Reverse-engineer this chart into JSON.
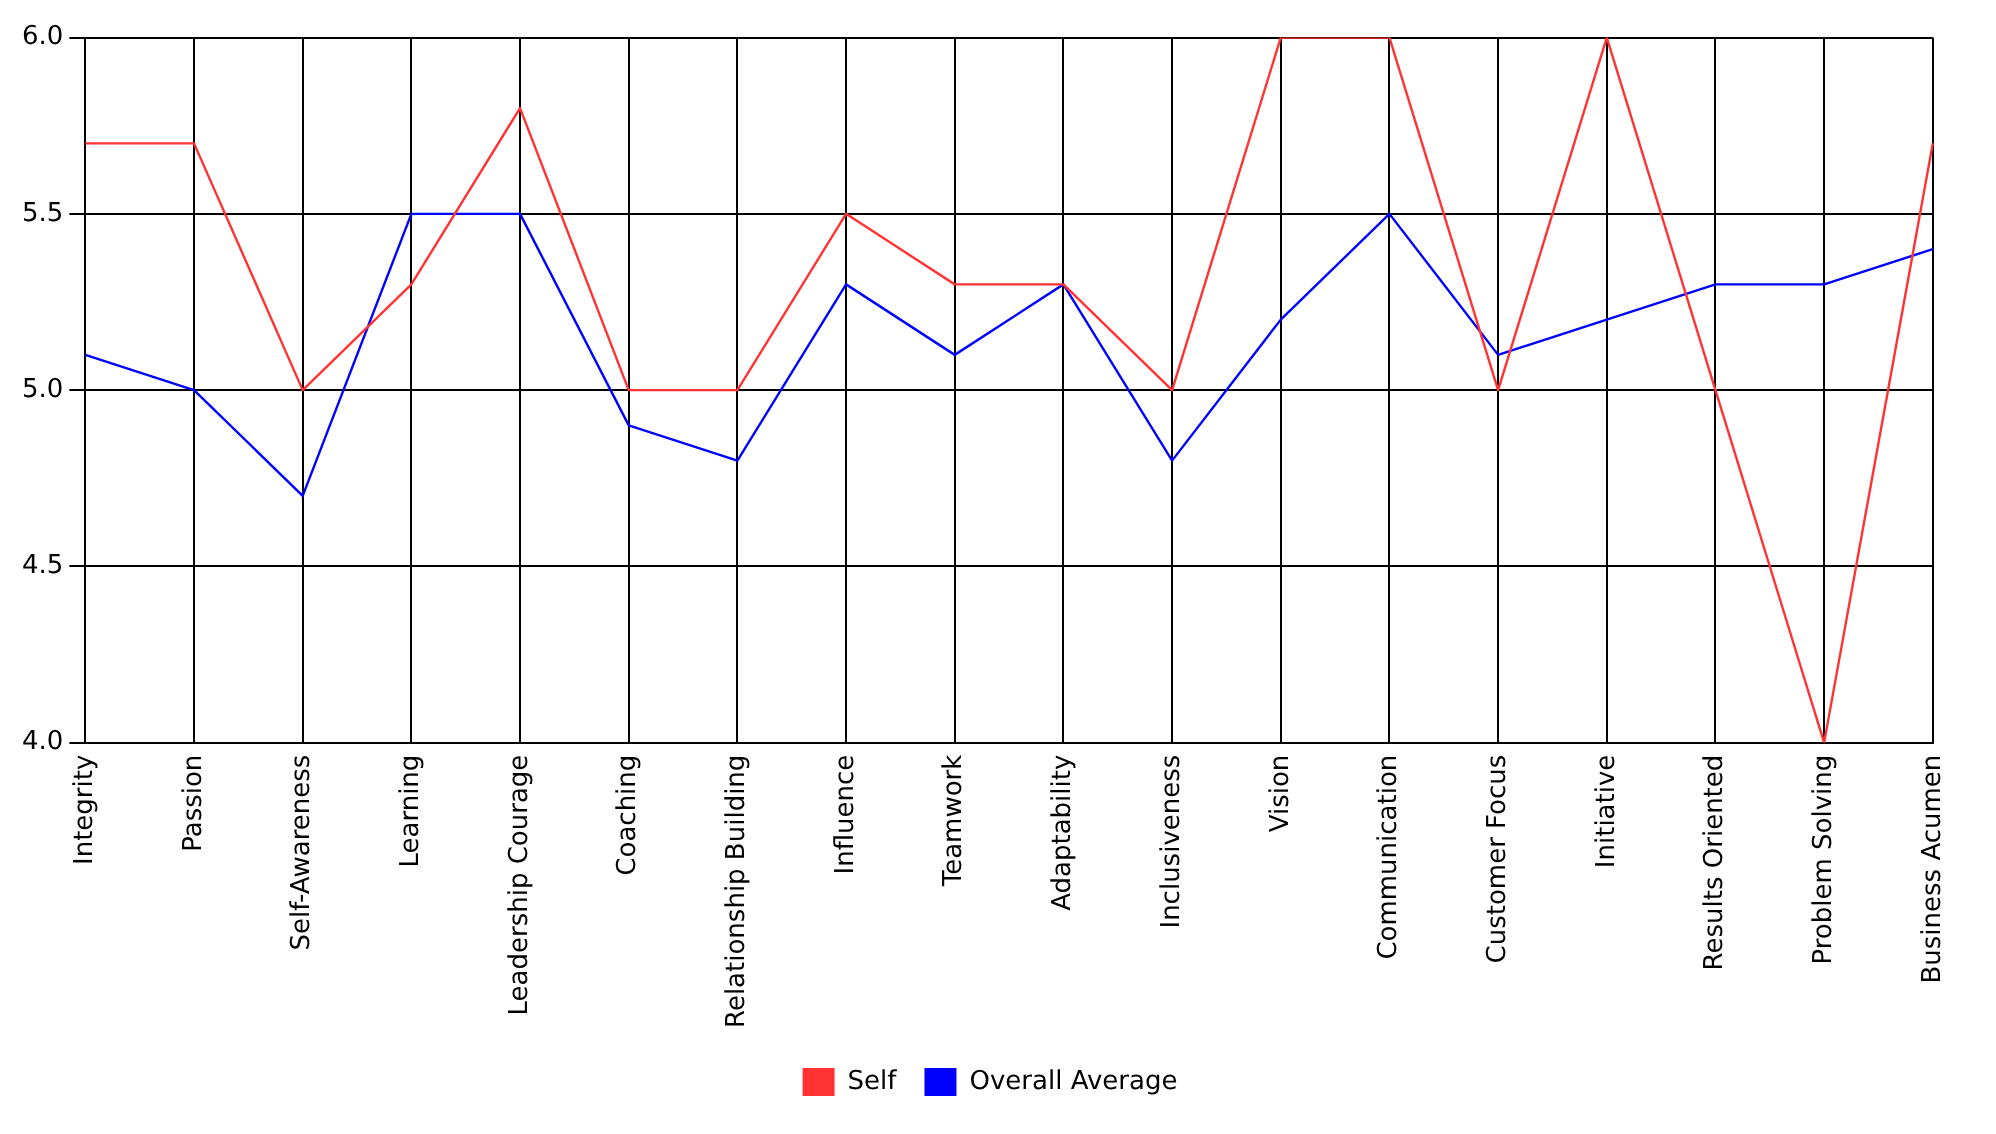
{
  "chart_data": {
    "type": "line",
    "categories": [
      "Integrity",
      "Passion",
      "Self-Awareness",
      "Learning",
      "Leadership Courage",
      "Coaching",
      "Relationship Building",
      "Influence",
      "Teamwork",
      "Adaptability",
      "Inclusiveness",
      "Vision",
      "Communication",
      "Customer Focus",
      "Initiative",
      "Results Oriented",
      "Problem Solving",
      "Business Acumen"
    ],
    "series": [
      {
        "name": "Self",
        "color": "#ff3333",
        "values": [
          5.7,
          5.7,
          5.0,
          5.3,
          5.8,
          5.0,
          5.0,
          5.5,
          5.3,
          5.3,
          5.0,
          6.0,
          6.0,
          5.0,
          6.0,
          5.0,
          4.0,
          5.7
        ]
      },
      {
        "name": "Overall Average",
        "color": "#0000ff",
        "values": [
          5.1,
          5.0,
          4.7,
          5.5,
          5.5,
          4.9,
          4.8,
          5.3,
          5.1,
          5.3,
          4.8,
          5.2,
          5.5,
          5.1,
          5.2,
          5.3,
          5.3,
          5.4
        ]
      }
    ],
    "ylim": [
      4.0,
      6.0
    ],
    "yticks": [
      {
        "value": 4.0,
        "label": "4.0"
      },
      {
        "value": 4.5,
        "label": "4.5"
      },
      {
        "value": 5.0,
        "label": "5.0"
      },
      {
        "value": 5.5,
        "label": "5.5"
      },
      {
        "value": 6.0,
        "label": "6.0"
      }
    ],
    "grid": true,
    "legend": "bottom",
    "marker": "none",
    "line_style": "solid"
  }
}
